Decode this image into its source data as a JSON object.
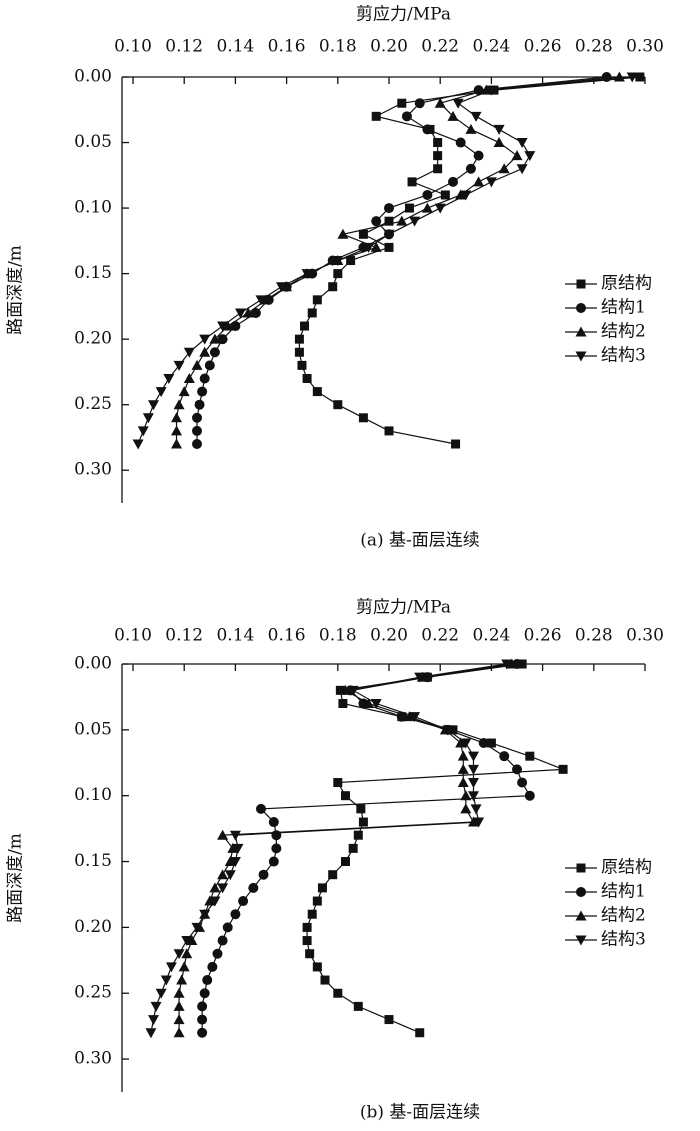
{
  "chart_data": [
    {
      "type": "line",
      "title": "剪应力/MPa",
      "ylabel": "路面深度/m",
      "caption": "(a) 基-面层连续",
      "x": [
        0,
        0.01,
        0.02,
        0.03,
        0.04,
        0.05,
        0.06,
        0.07,
        0.08,
        0.09,
        0.1,
        0.11,
        0.12,
        0.13,
        0.14,
        0.15,
        0.16,
        0.17,
        0.18,
        0.19,
        0.2,
        0.21,
        0.22,
        0.23,
        0.24,
        0.25,
        0.26,
        0.27,
        0.28
      ],
      "xlim": [
        0,
        0.325
      ],
      "xticks": [
        {
          "value": 0,
          "label": "0.00"
        },
        0.05,
        {
          "value": 0.1,
          "label": "0.10"
        },
        0.15,
        {
          "value": 0.2,
          "label": "0.20"
        },
        0.25,
        {
          "value": 0.3,
          "label": "0.30"
        }
      ],
      "ylim": [
        0.0957,
        0.3
      ],
      "yticks": [
        {
          "value": 0.1,
          "label": "0.10"
        },
        0.12,
        0.14,
        0.16,
        0.18,
        {
          "value": 0.2,
          "label": "0.20"
        },
        0.22,
        0.24,
        0.26,
        0.28,
        {
          "value": 0.3,
          "label": "0.30"
        }
      ],
      "legend": "right",
      "series": [
        {
          "name": "原结构",
          "color": "#111111",
          "marker": "square",
          "values": [
            0.298,
            0.241,
            0.205,
            0.195,
            0.216,
            0.219,
            0.219,
            0.219,
            0.209,
            0.222,
            0.208,
            0.2,
            0.19,
            0.2,
            0.185,
            0.18,
            0.178,
            0.172,
            0.17,
            0.167,
            0.165,
            0.165,
            0.166,
            0.168,
            0.172,
            0.18,
            0.19,
            0.2,
            0.226
          ]
        },
        {
          "name": "结构1",
          "color": "#111111",
          "marker": "circle",
          "values": [
            0.285,
            0.235,
            0.212,
            0.207,
            0.215,
            0.228,
            0.235,
            0.232,
            0.225,
            0.215,
            0.2,
            0.195,
            0.2,
            0.19,
            0.178,
            0.17,
            0.16,
            0.153,
            0.148,
            0.14,
            0.135,
            0.132,
            0.13,
            0.128,
            0.127,
            0.126,
            0.125,
            0.125,
            0.125
          ]
        },
        {
          "name": "结构2",
          "color": "#111111",
          "marker": "triangle-up",
          "values": [
            0.29,
            0.238,
            0.22,
            0.225,
            0.232,
            0.243,
            0.25,
            0.245,
            0.235,
            0.228,
            0.215,
            0.205,
            0.182,
            0.195,
            0.18,
            0.168,
            0.16,
            0.152,
            0.145,
            0.137,
            0.132,
            0.128,
            0.125,
            0.122,
            0.12,
            0.118,
            0.117,
            0.117,
            0.117
          ]
        },
        {
          "name": "结构3",
          "color": "#111111",
          "marker": "triangle-down",
          "values": [
            0.295,
            0.24,
            0.227,
            0.234,
            0.243,
            0.252,
            0.255,
            0.252,
            0.24,
            0.23,
            0.22,
            0.21,
            0.2,
            0.192,
            0.18,
            0.168,
            0.158,
            0.15,
            0.142,
            0.135,
            0.128,
            0.122,
            0.118,
            0.114,
            0.111,
            0.108,
            0.106,
            0.104,
            0.102
          ]
        }
      ]
    },
    {
      "type": "line",
      "title": "剪应力/MPa",
      "ylabel": "路面深度/m",
      "caption": "(b) 基-面层连续",
      "x": [
        0,
        0.01,
        0.02,
        0.03,
        0.04,
        0.05,
        0.06,
        0.07,
        0.08,
        0.09,
        0.1,
        0.11,
        0.12,
        0.13,
        0.14,
        0.15,
        0.16,
        0.17,
        0.18,
        0.19,
        0.2,
        0.21,
        0.22,
        0.23,
        0.24,
        0.25,
        0.26,
        0.27,
        0.28
      ],
      "xlim": [
        0,
        0.325
      ],
      "xticks": [
        {
          "value": 0,
          "label": "0.00"
        },
        0.05,
        {
          "value": 0.1,
          "label": "0.10"
        },
        0.15,
        {
          "value": 0.2,
          "label": "0.20"
        },
        0.25,
        {
          "value": 0.3,
          "label": "0.30"
        }
      ],
      "ylim": [
        0.0957,
        0.3
      ],
      "yticks": [
        {
          "value": 0.1,
          "label": "0.10"
        },
        0.12,
        0.14,
        0.16,
        0.18,
        {
          "value": 0.2,
          "label": "0.20"
        },
        0.22,
        0.24,
        0.26,
        0.28,
        {
          "value": 0.3,
          "label": "0.30"
        }
      ],
      "legend": "right",
      "series": [
        {
          "name": "原结构",
          "color": "#111111",
          "marker": "square",
          "values": [
            0.252,
            0.215,
            0.181,
            0.182,
            0.205,
            0.225,
            0.24,
            0.255,
            0.268,
            0.18,
            0.183,
            0.189,
            0.19,
            0.188,
            0.186,
            0.183,
            0.178,
            0.174,
            0.172,
            0.17,
            0.168,
            0.168,
            0.169,
            0.172,
            0.175,
            0.18,
            0.188,
            0.2,
            0.212
          ]
        },
        {
          "name": "结构1",
          "color": "#111111",
          "marker": "circle",
          "values": [
            0.25,
            0.215,
            0.185,
            0.19,
            0.205,
            0.223,
            0.237,
            0.245,
            0.25,
            0.252,
            0.255,
            0.15,
            0.155,
            0.156,
            0.156,
            0.155,
            0.151,
            0.147,
            0.143,
            0.14,
            0.137,
            0.135,
            0.133,
            0.131,
            0.129,
            0.128,
            0.127,
            0.127,
            0.127
          ]
        },
        {
          "name": "结构2",
          "color": "#111111",
          "marker": "triangle-up",
          "values": [
            0.248,
            0.213,
            0.183,
            0.192,
            0.208,
            0.222,
            0.228,
            0.229,
            0.229,
            0.229,
            0.23,
            0.23,
            0.233,
            0.135,
            0.139,
            0.138,
            0.135,
            0.132,
            0.13,
            0.128,
            0.126,
            0.123,
            0.121,
            0.12,
            0.119,
            0.118,
            0.118,
            0.118,
            0.118
          ]
        },
        {
          "name": "结构3",
          "color": "#111111",
          "marker": "triangle-down",
          "values": [
            0.246,
            0.212,
            0.186,
            0.195,
            0.21,
            0.223,
            0.23,
            0.233,
            0.233,
            0.233,
            0.233,
            0.234,
            0.235,
            0.14,
            0.141,
            0.14,
            0.138,
            0.135,
            0.132,
            0.128,
            0.125,
            0.121,
            0.118,
            0.115,
            0.113,
            0.111,
            0.109,
            0.108,
            0.107
          ]
        }
      ]
    }
  ]
}
